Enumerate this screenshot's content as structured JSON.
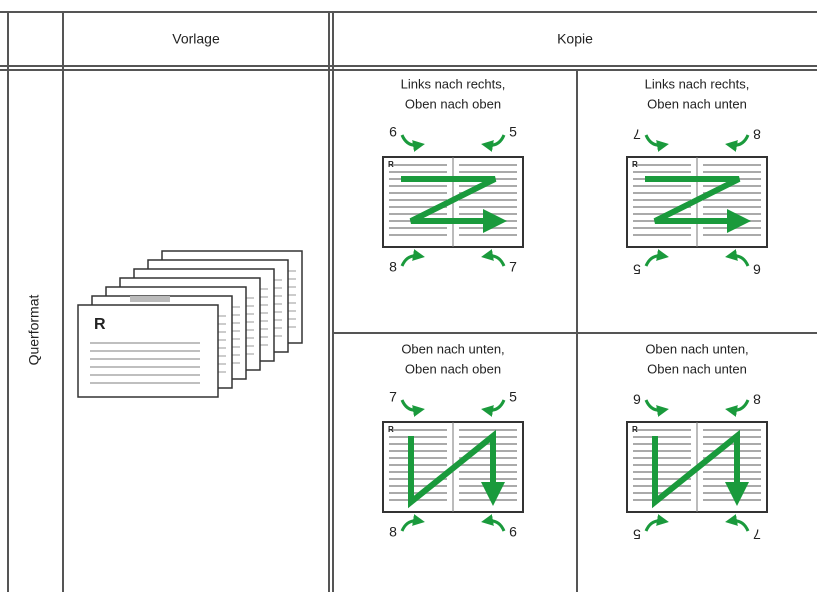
{
  "header": {
    "vorlage": "Vorlage",
    "kopie": "Kopie"
  },
  "row_label": "Querformat",
  "page_mark": "R",
  "copies": [
    {
      "title": [
        "Links nach rechts,",
        "Oben nach oben"
      ],
      "pages": [
        "6",
        "5",
        "8",
        "7"
      ]
    },
    {
      "title": [
        "Links nach rechts,",
        "Oben nach unten"
      ],
      "pages": [
        "7",
        "8",
        "5",
        "6"
      ]
    },
    {
      "title": [
        "Oben nach unten,",
        "Oben nach oben"
      ],
      "pages": [
        "7",
        "5",
        "8",
        "6"
      ]
    },
    {
      "title": [
        "Oben nach unten,",
        "Oben nach unten"
      ],
      "pages": [
        "6",
        "8",
        "5",
        "7"
      ]
    }
  ]
}
